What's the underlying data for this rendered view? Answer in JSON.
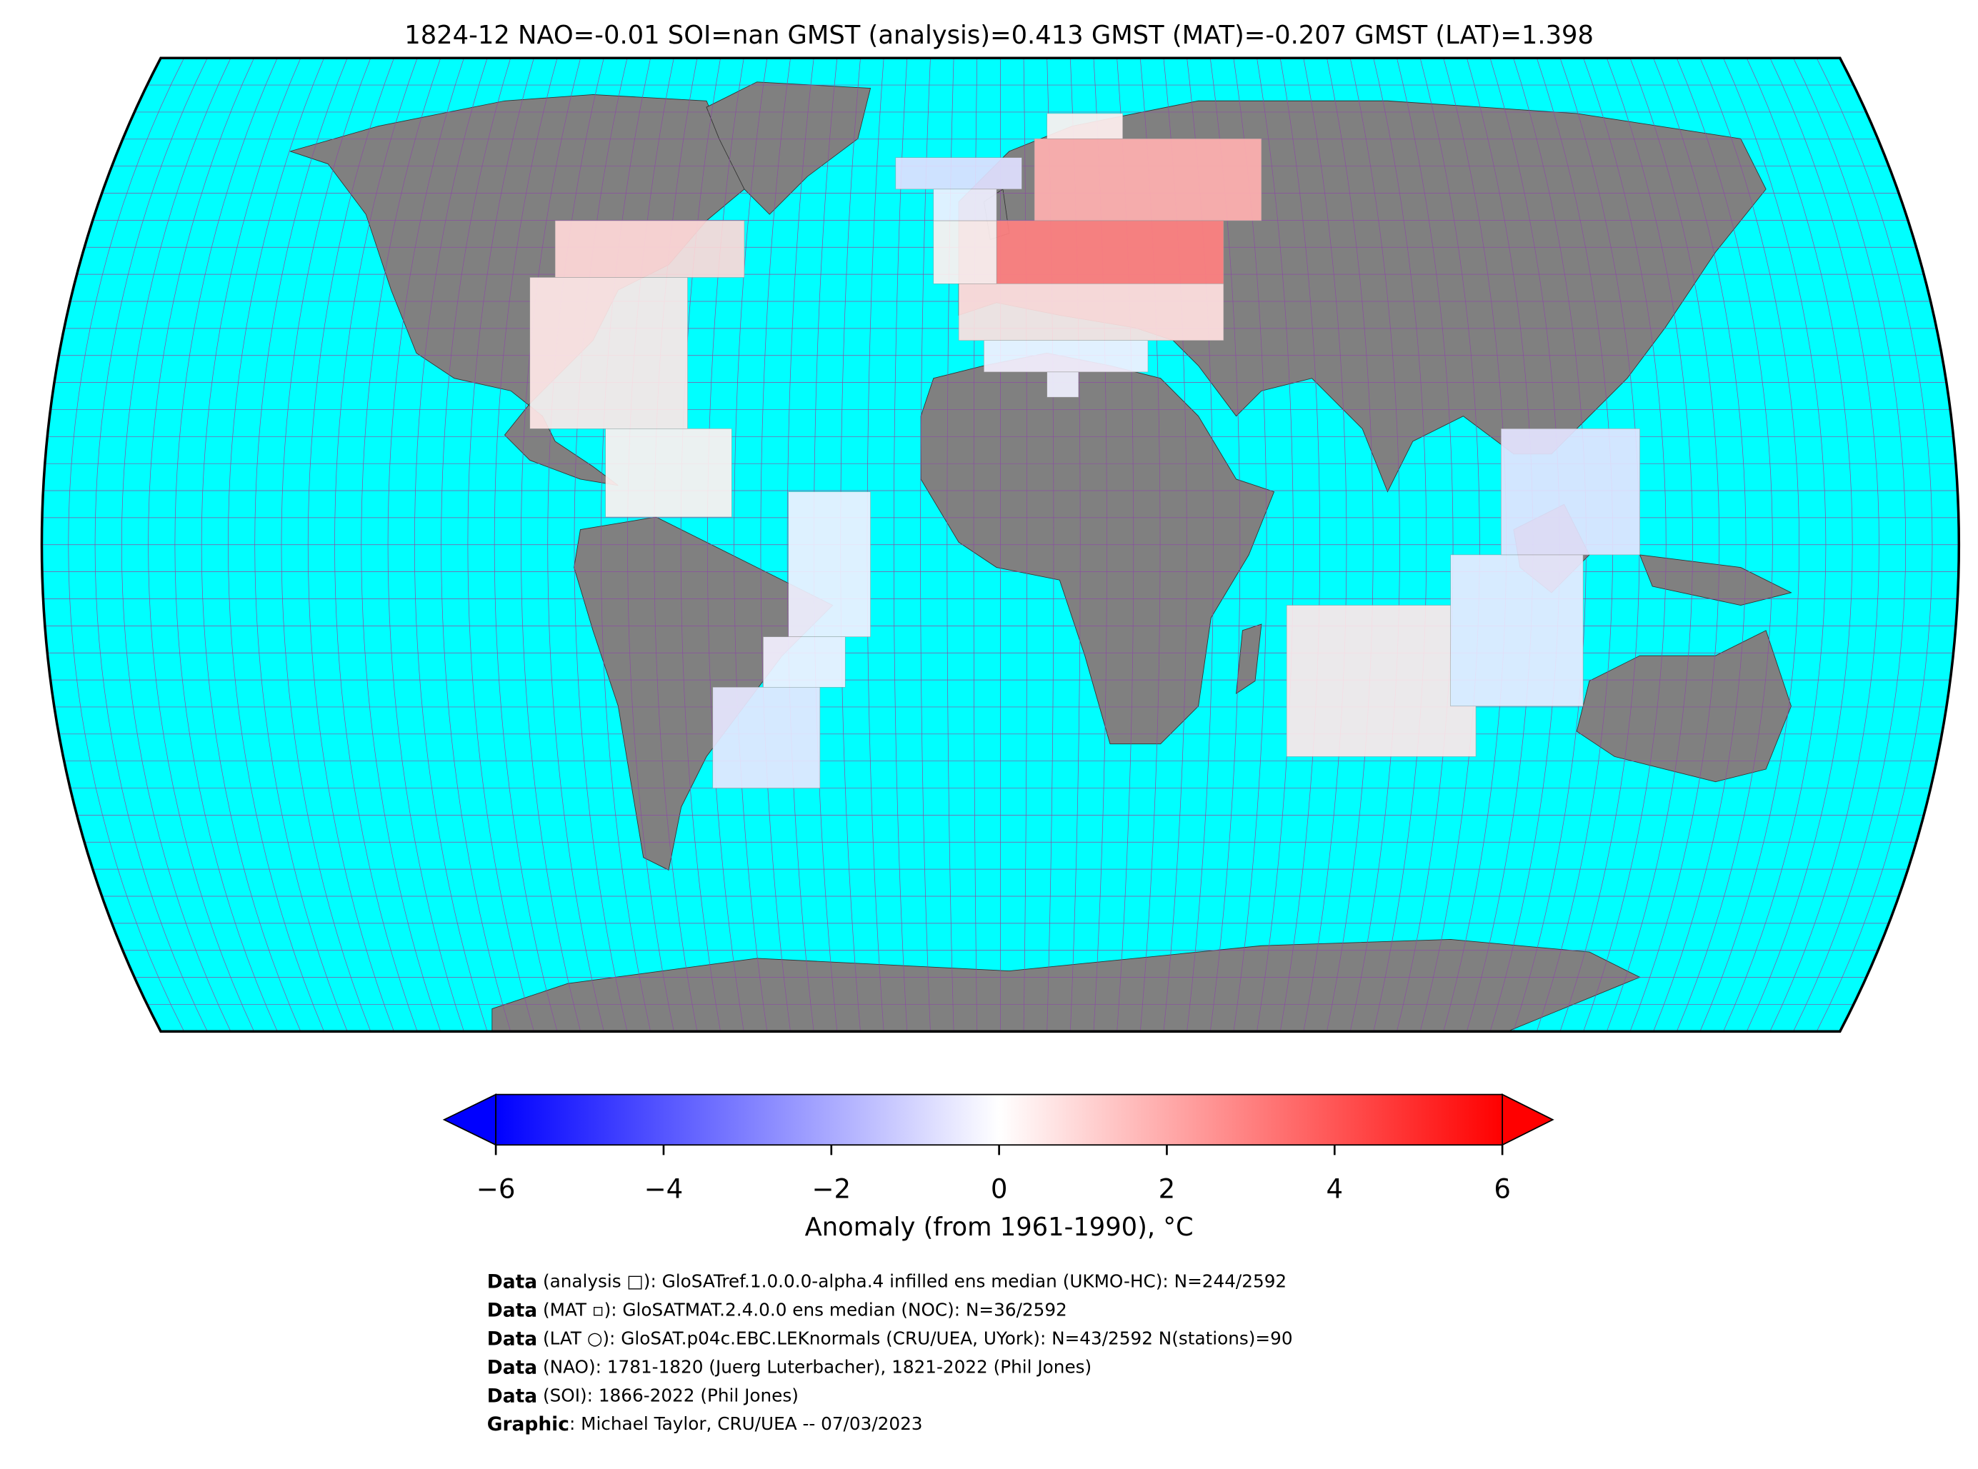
{
  "title": "1824-12 NAO=-0.01 SOI=nan GMST (analysis)=0.413 GMST (MAT)=-0.207 GMST (LAT)=1.398",
  "colorbar": {
    "label": "Anomaly (from 1961-1990), °C",
    "lim": [
      -6,
      6
    ],
    "ticks": [
      {
        "value": -6,
        "label": "−6"
      },
      {
        "value": -4,
        "label": "−4"
      },
      {
        "value": -2,
        "label": "−2"
      },
      0,
      2,
      4,
      6
    ],
    "colors": [
      "#0000ff",
      "#ffffff",
      "#ff0000"
    ]
  },
  "credits": [
    {
      "label": "Data",
      "text": " (analysis □): GloSATref.1.0.0.0-alpha.4 infilled ens median (UKMO-HC): N=244/2592"
    },
    {
      "label": "Data",
      "text": " (MAT ▫): GloSATMAT.2.4.0.0 ens median (NOC): N=36/2592"
    },
    {
      "label": "Data",
      "text": " (LAT ○): GloSAT.p04c.EBC.LEKnormals (CRU/UEA, UYork): N=43/2592 N(stations)=90"
    },
    {
      "label": "Data",
      "text": " (NAO): 1781-1820 (Juerg Luterbacher), 1821-2022 (Phil Jones)"
    },
    {
      "label": "Data",
      "text": " (SOI): 1866-2022 (Phil Jones)"
    },
    {
      "label": "Graphic",
      "text": ": Michael Taylor, CRU/UEA -- 07/03/2023"
    }
  ]
}
